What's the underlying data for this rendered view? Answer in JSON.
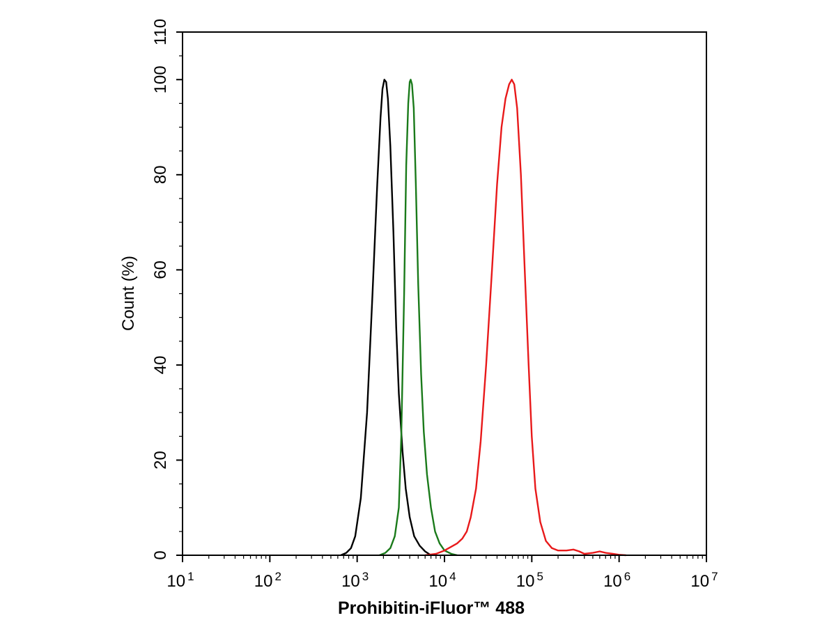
{
  "chart_data": {
    "type": "line",
    "title": "",
    "xlabel": "Prohibitin-iFluor™ 488",
    "ylabel": "Count  (%)",
    "x_scale": "log",
    "xlim": [
      10,
      10000000
    ],
    "ylim": [
      0,
      110
    ],
    "x_ticks": [
      {
        "value": 10,
        "base": "10",
        "exp": "1"
      },
      {
        "value": 100,
        "base": "10",
        "exp": "2"
      },
      {
        "value": 1000,
        "base": "10",
        "exp": "3"
      },
      {
        "value": 10000,
        "base": "10",
        "exp": "4"
      },
      {
        "value": 100000,
        "base": "10",
        "exp": "5"
      },
      {
        "value": 1000000,
        "base": "10",
        "exp": "6"
      },
      {
        "value": 10000000,
        "base": "10",
        "exp": "7"
      }
    ],
    "y_ticks": [
      {
        "value": 0,
        "label": "0"
      },
      {
        "value": 20,
        "label": "20"
      },
      {
        "value": 40,
        "label": "40"
      },
      {
        "value": 60,
        "label": "60"
      },
      {
        "value": 80,
        "label": "80"
      },
      {
        "value": 100,
        "label": "100"
      },
      {
        "value": 110,
        "label": "110"
      }
    ],
    "grid": false,
    "legend": "none",
    "series": [
      {
        "color": "#000000",
        "points": [
          [
            650,
            0
          ],
          [
            750,
            0.5
          ],
          [
            850,
            1.5
          ],
          [
            950,
            4
          ],
          [
            1100,
            12
          ],
          [
            1300,
            30
          ],
          [
            1500,
            55
          ],
          [
            1700,
            78
          ],
          [
            1850,
            92
          ],
          [
            1950,
            98
          ],
          [
            2050,
            100
          ],
          [
            2150,
            99.5
          ],
          [
            2250,
            96
          ],
          [
            2400,
            86
          ],
          [
            2600,
            68
          ],
          [
            2800,
            48
          ],
          [
            3000,
            34
          ],
          [
            3300,
            22
          ],
          [
            3600,
            14
          ],
          [
            4000,
            8
          ],
          [
            4500,
            4
          ],
          [
            5200,
            2
          ],
          [
            6000,
            0.8
          ],
          [
            7000,
            0
          ]
        ]
      },
      {
        "color": "#1a7a1a",
        "points": [
          [
            1800,
            0
          ],
          [
            2100,
            0.5
          ],
          [
            2400,
            1.5
          ],
          [
            2700,
            4
          ],
          [
            3000,
            10
          ],
          [
            3200,
            25
          ],
          [
            3450,
            55
          ],
          [
            3650,
            82
          ],
          [
            3850,
            95
          ],
          [
            4000,
            99.5
          ],
          [
            4100,
            100
          ],
          [
            4250,
            99
          ],
          [
            4450,
            94
          ],
          [
            4700,
            78
          ],
          [
            5000,
            57
          ],
          [
            5400,
            38
          ],
          [
            5800,
            26
          ],
          [
            6300,
            17
          ],
          [
            7000,
            10
          ],
          [
            7800,
            5
          ],
          [
            8800,
            2.5
          ],
          [
            10000,
            1
          ],
          [
            12000,
            0.3
          ],
          [
            14000,
            0
          ]
        ]
      },
      {
        "color": "#e8191a",
        "points": [
          [
            6000,
            0
          ],
          [
            8000,
            0.3
          ],
          [
            10000,
            1
          ],
          [
            12000,
            1.8
          ],
          [
            14000,
            2.5
          ],
          [
            16000,
            3.5
          ],
          [
            18000,
            5
          ],
          [
            20000,
            8
          ],
          [
            23000,
            14
          ],
          [
            26000,
            24
          ],
          [
            30000,
            40
          ],
          [
            35000,
            60
          ],
          [
            40000,
            78
          ],
          [
            45000,
            90
          ],
          [
            50000,
            96
          ],
          [
            55000,
            99
          ],
          [
            59000,
            100
          ],
          [
            63000,
            99
          ],
          [
            68000,
            94
          ],
          [
            75000,
            80
          ],
          [
            83000,
            60
          ],
          [
            92000,
            40
          ],
          [
            100000,
            25
          ],
          [
            110000,
            14
          ],
          [
            125000,
            7
          ],
          [
            145000,
            3
          ],
          [
            170000,
            1.5
          ],
          [
            200000,
            1
          ],
          [
            250000,
            1
          ],
          [
            300000,
            1.2
          ],
          [
            350000,
            0.8
          ],
          [
            400000,
            0.3
          ],
          [
            500000,
            0.5
          ],
          [
            600000,
            0.8
          ],
          [
            700000,
            0.5
          ],
          [
            850000,
            0.3
          ],
          [
            1000000,
            0.1
          ],
          [
            1200000,
            0
          ]
        ]
      }
    ]
  }
}
